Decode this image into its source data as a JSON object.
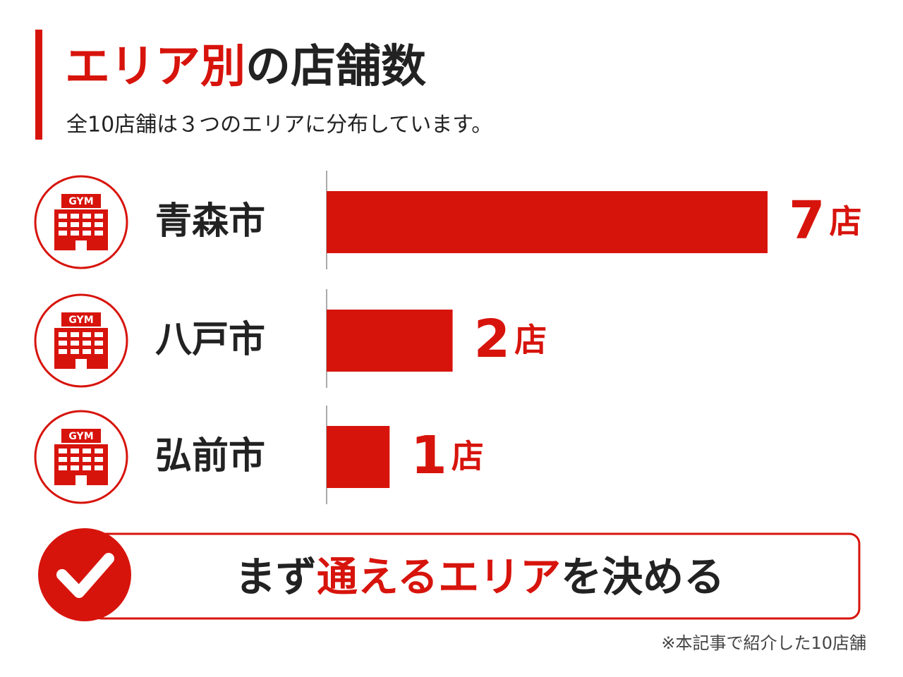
{
  "chart_data": {
    "type": "bar",
    "title_highlight": "エリア別",
    "title_rest": "の店舗数",
    "subtitle": "全10店舗は３つのエリアに分布しています。",
    "icon_label": "GYM",
    "categories": [
      "青森市",
      "八戸市",
      "弘前市"
    ],
    "values": [
      7,
      2,
      1
    ],
    "unit": "店",
    "color": "#d7140c",
    "xlim": [
      0,
      7
    ],
    "callout": [
      "まず",
      "通えるエリア",
      "を決める"
    ],
    "footnote": "※本記事で紹介した10店舗"
  }
}
